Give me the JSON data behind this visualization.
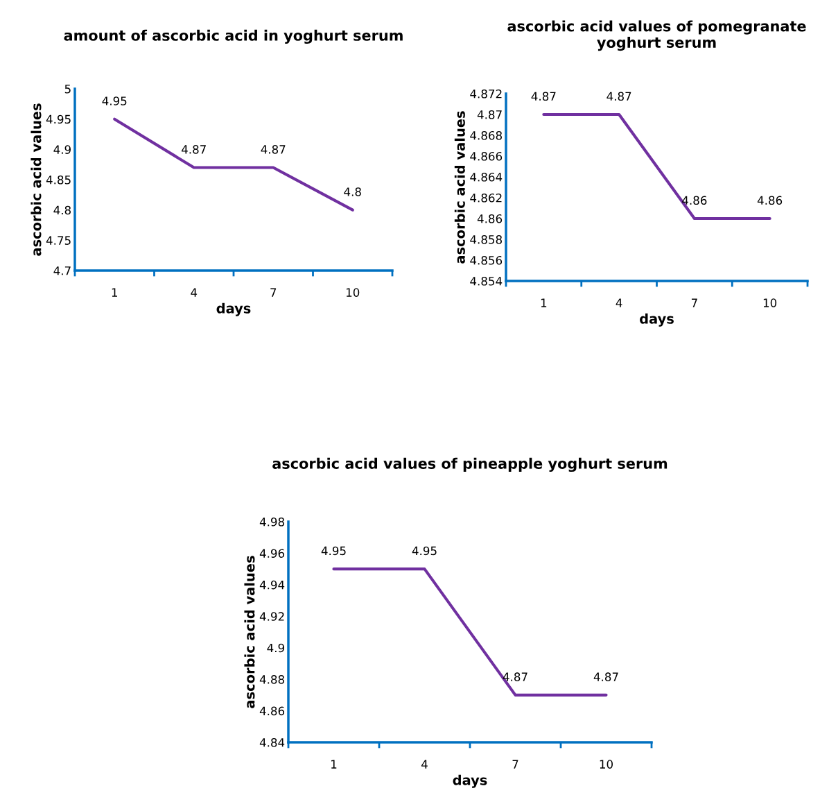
{
  "chart_data": [
    {
      "type": "line",
      "title": "amount of ascorbic acid in yoghurt serum",
      "xlabel": "days",
      "ylabel": "ascorbic acid values",
      "categories": [
        "1",
        "4",
        "7",
        "10"
      ],
      "series": [
        {
          "color": "#7030a0",
          "values": [
            4.95,
            4.87,
            4.87,
            4.8
          ]
        }
      ],
      "ylim": [
        4.7,
        5
      ],
      "yticks": [
        4.7,
        4.75,
        4.8,
        4.85,
        4.9,
        4.95,
        5
      ],
      "grid": false,
      "legend": false,
      "marker": "none",
      "line_style": "solid",
      "data_labels": true
    },
    {
      "type": "line",
      "title": "ascorbic acid values of pomegranate yoghurt serum",
      "xlabel": "days",
      "ylabel": "ascorbic acid values",
      "categories": [
        "1",
        "4",
        "7",
        "10"
      ],
      "series": [
        {
          "color": "#7030a0",
          "values": [
            4.87,
            4.87,
            4.86,
            4.86
          ]
        }
      ],
      "ylim": [
        4.854,
        4.872
      ],
      "yticks": [
        4.854,
        4.856,
        4.858,
        4.86,
        4.862,
        4.864,
        4.866,
        4.868,
        4.87,
        4.872
      ],
      "grid": false,
      "legend": false,
      "marker": "none",
      "line_style": "solid",
      "data_labels": true
    },
    {
      "type": "line",
      "title": "ascorbic acid values of pineapple yoghurt serum",
      "xlabel": "days",
      "ylabel": "ascorbic acid values",
      "categories": [
        "1",
        "4",
        "7",
        "10"
      ],
      "series": [
        {
          "color": "#7030a0",
          "values": [
            4.95,
            4.95,
            4.87,
            4.87
          ]
        }
      ],
      "ylim": [
        4.84,
        4.98
      ],
      "yticks": [
        4.84,
        4.86,
        4.88,
        4.9,
        4.92,
        4.94,
        4.96,
        4.98
      ],
      "grid": false,
      "legend": false,
      "marker": "none",
      "line_style": "solid",
      "data_labels": true
    }
  ]
}
